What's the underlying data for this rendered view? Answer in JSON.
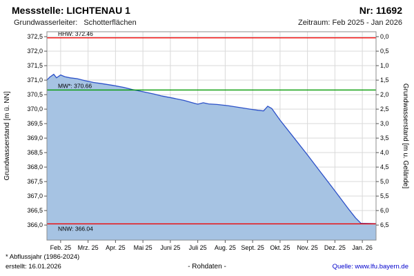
{
  "header": {
    "station_label": "Messstelle: LICHTENAU 1",
    "number_label": "Nr: 11692",
    "aquifer_label": "Grundwasserleiter:",
    "aquifer_value": "Schotterflächen",
    "period_label": "Zeitraum: Feb 2025 - Jan 2026"
  },
  "chart_data": {
    "type": "area",
    "ylabel_left": "Grundwasserstand [m ü. NN]",
    "ylabel_right": "Grundwasserstand [m u. Gelände]",
    "x_tick_labels": [
      "Feb. 25",
      "Mrz. 25",
      "Apr. 25",
      "Mai 25",
      "Juni 25",
      "Juli 25",
      "Aug. 25",
      "Sept. 25",
      "Okt. 25",
      "Nov. 25",
      "Dez. 25",
      "Jan. 26"
    ],
    "y_left_ticks": [
      366.0,
      366.5,
      367.0,
      367.5,
      368.0,
      368.5,
      369.0,
      369.5,
      370.0,
      370.5,
      371.0,
      371.5,
      372.0,
      372.5
    ],
    "y_right_ticks": [
      6.5,
      6.0,
      5.5,
      5.0,
      4.5,
      4.0,
      3.5,
      3.0,
      2.5,
      2.0,
      1.5,
      1.0,
      0.5,
      0.0
    ],
    "y_left_range": [
      365.48,
      372.67
    ],
    "x_range_months": [
      0,
      12
    ],
    "grid": true,
    "reference_lines": [
      {
        "name": "HHW",
        "label": "HHW: 372.46",
        "value": 372.46,
        "color": "#f00000",
        "label_below": false
      },
      {
        "name": "MW",
        "label": "MW*: 370.66",
        "value": 370.66,
        "color": "#009900",
        "label_below": false
      },
      {
        "name": "NNW",
        "label": "NNW: 366.04",
        "value": 366.04,
        "color": "#f00000",
        "label_below": true
      }
    ],
    "series": [
      {
        "name": "Grundwasserstand Rohdaten",
        "points": [
          [
            0.0,
            371.0
          ],
          [
            0.1,
            371.1
          ],
          [
            0.25,
            371.2
          ],
          [
            0.35,
            371.08
          ],
          [
            0.5,
            371.18
          ],
          [
            0.65,
            371.12
          ],
          [
            0.85,
            371.08
          ],
          [
            1.1,
            371.05
          ],
          [
            1.4,
            370.98
          ],
          [
            1.7,
            370.92
          ],
          [
            2.0,
            370.88
          ],
          [
            2.4,
            370.82
          ],
          [
            2.8,
            370.75
          ],
          [
            3.1,
            370.68
          ],
          [
            3.5,
            370.6
          ],
          [
            3.9,
            370.52
          ],
          [
            4.2,
            370.45
          ],
          [
            4.6,
            370.38
          ],
          [
            5.0,
            370.3
          ],
          [
            5.3,
            370.22
          ],
          [
            5.5,
            370.17
          ],
          [
            5.7,
            370.22
          ],
          [
            5.9,
            370.18
          ],
          [
            6.2,
            370.16
          ],
          [
            6.6,
            370.12
          ],
          [
            7.0,
            370.06
          ],
          [
            7.4,
            370.0
          ],
          [
            7.7,
            369.96
          ],
          [
            7.9,
            369.94
          ],
          [
            8.05,
            370.1
          ],
          [
            8.2,
            370.02
          ],
          [
            8.5,
            369.62
          ],
          [
            9.0,
            369.02
          ],
          [
            9.5,
            368.42
          ],
          [
            10.0,
            367.8
          ],
          [
            10.5,
            367.18
          ],
          [
            11.0,
            366.55
          ],
          [
            11.25,
            366.25
          ],
          [
            11.45,
            366.06
          ],
          [
            12.0,
            366.05
          ]
        ]
      }
    ],
    "colors": {
      "area_fill": "#a6c3e3",
      "line": "#2b50c8",
      "grid": "#d9d9d9",
      "frame": "#8c8c8c",
      "tick": "#555555"
    }
  },
  "footer": {
    "note": "* Abflussjahr (1986-2024)",
    "created": "erstellt: 16.01.2026",
    "center": "- Rohdaten -",
    "source": "Quelle: www.lfu.bayern.de"
  }
}
